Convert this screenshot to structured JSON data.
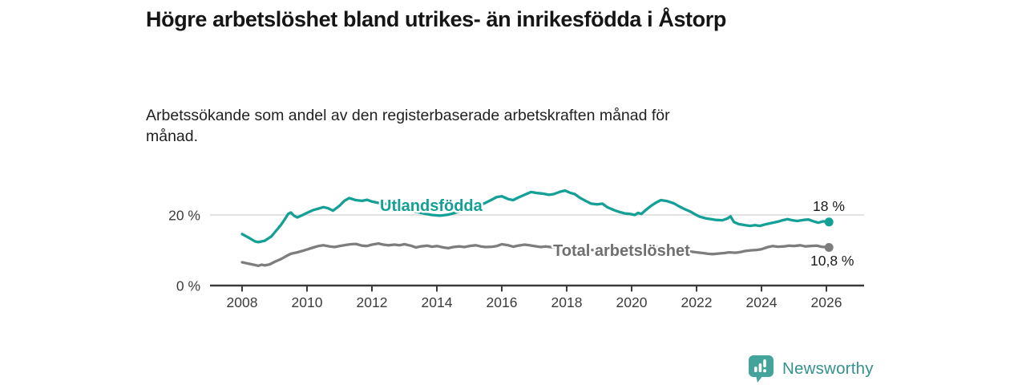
{
  "header": {
    "title": "Högre arbetslöshet bland utrikes- än inrikesfödda i Åstorp",
    "subtitle_line1": "Arbetssökande som andel av den registerbaserade arbetskraften månad för",
    "subtitle_line2": "månad."
  },
  "colors": {
    "accent_teal": "#14a096",
    "series_gray": "#7d7d7d",
    "axis": "#3a3a3a",
    "gridline": "#d8d8d8",
    "logo_icon": "#44a49c",
    "logo_text": "#35918c"
  },
  "footer": {
    "logo_text": "Newsworthy"
  },
  "chart_data": {
    "type": "line",
    "title": "Högre arbetslöshet bland utrikes- än inrikesfödda i Åstorp",
    "subtitle": "Arbetssökande som andel av den registerbaserade arbetskraften månad för månad.",
    "grid": "single horizontal gridline at 20 %",
    "legend_position": "inline labels on lines, value labels at line ends",
    "x_axis": {
      "ticks": [
        "2008",
        "2010",
        "2012",
        "2014",
        "2016",
        "2018",
        "2020",
        "2022",
        "2024",
        "2026"
      ],
      "range": [
        2007.0,
        2027.2
      ],
      "unit": "year, monthly data points"
    },
    "y_axis": {
      "ticks": [
        {
          "value": 0,
          "label": "0 %"
        },
        {
          "value": 20,
          "label": "20 %"
        }
      ],
      "range": [
        0,
        29
      ],
      "unit": "%"
    },
    "series": [
      {
        "name": "Utlandsfödda",
        "color": "#14a096",
        "label_color": "#14a096",
        "end_label": "18 %",
        "end_value": 18.0,
        "points": [
          [
            2008.0,
            14.6
          ],
          [
            2008.2,
            13.6
          ],
          [
            2008.4,
            12.5
          ],
          [
            2008.5,
            12.3
          ],
          [
            2008.7,
            12.7
          ],
          [
            2008.9,
            13.9
          ],
          [
            2009.0,
            15.0
          ],
          [
            2009.2,
            17.2
          ],
          [
            2009.33,
            19.0
          ],
          [
            2009.42,
            20.3
          ],
          [
            2009.5,
            20.7
          ],
          [
            2009.6,
            19.8
          ],
          [
            2009.7,
            19.3
          ],
          [
            2009.85,
            19.9
          ],
          [
            2010.0,
            20.6
          ],
          [
            2010.2,
            21.4
          ],
          [
            2010.35,
            21.8
          ],
          [
            2010.5,
            22.2
          ],
          [
            2010.65,
            21.9
          ],
          [
            2010.8,
            21.2
          ],
          [
            2011.0,
            22.6
          ],
          [
            2011.15,
            24.0
          ],
          [
            2011.3,
            24.8
          ],
          [
            2011.5,
            24.2
          ],
          [
            2011.7,
            24.0
          ],
          [
            2011.85,
            24.3
          ],
          [
            2012.0,
            23.8
          ],
          [
            2012.2,
            23.4
          ],
          [
            2012.4,
            23.2
          ],
          [
            2012.6,
            22.8
          ],
          [
            2012.85,
            22.2
          ],
          [
            2013.1,
            21.5
          ],
          [
            2013.35,
            20.9
          ],
          [
            2013.6,
            20.4
          ],
          [
            2013.85,
            20.0
          ],
          [
            2014.1,
            19.8
          ],
          [
            2014.35,
            20.1
          ],
          [
            2014.6,
            20.7
          ],
          [
            2014.85,
            21.3
          ],
          [
            2015.1,
            22.0
          ],
          [
            2015.35,
            22.8
          ],
          [
            2015.6,
            23.9
          ],
          [
            2015.85,
            25.1
          ],
          [
            2016.0,
            25.3
          ],
          [
            2016.2,
            24.5
          ],
          [
            2016.35,
            24.2
          ],
          [
            2016.5,
            24.9
          ],
          [
            2016.7,
            25.7
          ],
          [
            2016.9,
            26.5
          ],
          [
            2017.1,
            26.2
          ],
          [
            2017.3,
            26.0
          ],
          [
            2017.45,
            25.7
          ],
          [
            2017.6,
            25.9
          ],
          [
            2017.8,
            26.6
          ],
          [
            2017.95,
            26.9
          ],
          [
            2018.1,
            26.3
          ],
          [
            2018.25,
            25.9
          ],
          [
            2018.4,
            24.9
          ],
          [
            2018.6,
            23.9
          ],
          [
            2018.75,
            23.2
          ],
          [
            2018.95,
            23.0
          ],
          [
            2019.1,
            23.2
          ],
          [
            2019.25,
            22.2
          ],
          [
            2019.45,
            21.4
          ],
          [
            2019.6,
            20.9
          ],
          [
            2019.8,
            20.4
          ],
          [
            2019.95,
            20.3
          ],
          [
            2020.1,
            20.0
          ],
          [
            2020.2,
            20.6
          ],
          [
            2020.3,
            20.3
          ],
          [
            2020.45,
            21.5
          ],
          [
            2020.6,
            22.6
          ],
          [
            2020.75,
            23.5
          ],
          [
            2020.9,
            24.2
          ],
          [
            2021.1,
            23.9
          ],
          [
            2021.3,
            23.3
          ],
          [
            2021.45,
            22.5
          ],
          [
            2021.6,
            21.8
          ],
          [
            2021.8,
            21.0
          ],
          [
            2021.95,
            20.2
          ],
          [
            2022.1,
            19.5
          ],
          [
            2022.3,
            19.0
          ],
          [
            2022.45,
            18.8
          ],
          [
            2022.6,
            18.6
          ],
          [
            2022.8,
            18.5
          ],
          [
            2022.95,
            19.0
          ],
          [
            2023.05,
            19.6
          ],
          [
            2023.15,
            18.0
          ],
          [
            2023.3,
            17.4
          ],
          [
            2023.5,
            17.1
          ],
          [
            2023.65,
            16.9
          ],
          [
            2023.8,
            17.1
          ],
          [
            2023.95,
            16.9
          ],
          [
            2024.1,
            17.3
          ],
          [
            2024.3,
            17.7
          ],
          [
            2024.5,
            18.1
          ],
          [
            2024.65,
            18.5
          ],
          [
            2024.8,
            18.8
          ],
          [
            2024.95,
            18.5
          ],
          [
            2025.1,
            18.3
          ],
          [
            2025.3,
            18.6
          ],
          [
            2025.45,
            18.7
          ],
          [
            2025.6,
            18.2
          ],
          [
            2025.75,
            17.8
          ],
          [
            2025.9,
            18.2
          ],
          [
            2026.08,
            18.0
          ]
        ]
      },
      {
        "name": "Total arbetslöshet",
        "color": "#7d7d7d",
        "label_color": "#6f6f6f",
        "end_label": "10,8 %",
        "end_value": 10.8,
        "points": [
          [
            2008.0,
            6.6
          ],
          [
            2008.2,
            6.2
          ],
          [
            2008.35,
            5.9
          ],
          [
            2008.5,
            5.6
          ],
          [
            2008.6,
            5.9
          ],
          [
            2008.7,
            5.7
          ],
          [
            2008.85,
            6.0
          ],
          [
            2009.0,
            6.7
          ],
          [
            2009.2,
            7.5
          ],
          [
            2009.35,
            8.3
          ],
          [
            2009.5,
            9.0
          ],
          [
            2009.7,
            9.4
          ],
          [
            2009.85,
            9.8
          ],
          [
            2010.0,
            10.2
          ],
          [
            2010.2,
            10.8
          ],
          [
            2010.35,
            11.2
          ],
          [
            2010.5,
            11.4
          ],
          [
            2010.7,
            11.1
          ],
          [
            2010.85,
            10.9
          ],
          [
            2011.0,
            11.2
          ],
          [
            2011.2,
            11.5
          ],
          [
            2011.35,
            11.7
          ],
          [
            2011.5,
            11.8
          ],
          [
            2011.7,
            11.3
          ],
          [
            2011.85,
            11.2
          ],
          [
            2012.0,
            11.6
          ],
          [
            2012.2,
            11.9
          ],
          [
            2012.35,
            11.6
          ],
          [
            2012.5,
            11.4
          ],
          [
            2012.7,
            11.6
          ],
          [
            2012.85,
            11.4
          ],
          [
            2013.0,
            11.7
          ],
          [
            2013.2,
            11.3
          ],
          [
            2013.35,
            10.8
          ],
          [
            2013.5,
            11.1
          ],
          [
            2013.7,
            11.3
          ],
          [
            2013.85,
            11.0
          ],
          [
            2014.0,
            11.2
          ],
          [
            2014.2,
            10.8
          ],
          [
            2014.35,
            10.6
          ],
          [
            2014.5,
            10.9
          ],
          [
            2014.7,
            11.1
          ],
          [
            2014.85,
            10.9
          ],
          [
            2015.0,
            11.2
          ],
          [
            2015.2,
            11.4
          ],
          [
            2015.35,
            11.1
          ],
          [
            2015.5,
            10.9
          ],
          [
            2015.7,
            11.0
          ],
          [
            2015.85,
            11.2
          ],
          [
            2016.0,
            11.7
          ],
          [
            2016.2,
            11.4
          ],
          [
            2016.35,
            11.0
          ],
          [
            2016.5,
            11.3
          ],
          [
            2016.7,
            11.6
          ],
          [
            2016.85,
            11.4
          ],
          [
            2017.0,
            11.2
          ],
          [
            2017.2,
            10.9
          ],
          [
            2017.35,
            11.1
          ],
          [
            2017.5,
            10.9
          ],
          [
            2017.7,
            10.7
          ],
          [
            2017.85,
            10.6
          ],
          [
            2018.0,
            10.5
          ],
          [
            2018.25,
            10.4
          ],
          [
            2018.5,
            10.2
          ],
          [
            2018.75,
            10.1
          ],
          [
            2019.0,
            10.0
          ],
          [
            2019.25,
            10.0
          ],
          [
            2019.5,
            9.9
          ],
          [
            2019.75,
            10.1
          ],
          [
            2020.0,
            10.3
          ],
          [
            2020.25,
            10.8
          ],
          [
            2020.5,
            11.0
          ],
          [
            2020.75,
            10.9
          ],
          [
            2021.0,
            10.6
          ],
          [
            2021.25,
            10.3
          ],
          [
            2021.5,
            10.0
          ],
          [
            2021.75,
            9.7
          ],
          [
            2022.0,
            9.4
          ],
          [
            2022.2,
            9.2
          ],
          [
            2022.35,
            9.0
          ],
          [
            2022.5,
            8.9
          ],
          [
            2022.7,
            9.1
          ],
          [
            2022.85,
            9.2
          ],
          [
            2023.0,
            9.4
          ],
          [
            2023.2,
            9.3
          ],
          [
            2023.35,
            9.5
          ],
          [
            2023.5,
            9.8
          ],
          [
            2023.7,
            10.0
          ],
          [
            2023.85,
            10.1
          ],
          [
            2024.0,
            10.3
          ],
          [
            2024.2,
            10.9
          ],
          [
            2024.35,
            11.2
          ],
          [
            2024.5,
            11.0
          ],
          [
            2024.7,
            11.1
          ],
          [
            2024.85,
            11.3
          ],
          [
            2025.0,
            11.2
          ],
          [
            2025.2,
            11.4
          ],
          [
            2025.35,
            11.1
          ],
          [
            2025.5,
            11.2
          ],
          [
            2025.7,
            11.3
          ],
          [
            2025.85,
            11.0
          ],
          [
            2026.08,
            10.8
          ]
        ]
      }
    ]
  }
}
